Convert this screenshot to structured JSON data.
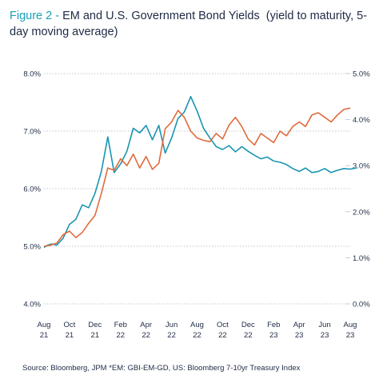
{
  "header": {
    "figure_label": "Figure 2 -",
    "title_text": "EM and U.S. Government Bond Yields",
    "subtitle_text": "(yield to maturity, 5-day moving average)"
  },
  "footer": {
    "source": "Source: Bloomberg, JPM *EM: GBI-EM-GD, US: Bloomberg 7-10yr Treasury Index"
  },
  "colors": {
    "em": "#1a95b0",
    "us": "#e06a3c",
    "grid": "#bfc8d0"
  },
  "chart_data": {
    "type": "line",
    "title": "EM and U.S. Government Bond Yields",
    "subtitle": "(yield to maturity, 5-day moving average)",
    "x_ticks": [
      {
        "month": "Aug",
        "year": "21"
      },
      {
        "month": "Oct",
        "year": "21"
      },
      {
        "month": "Dec",
        "year": "21"
      },
      {
        "month": "Feb",
        "year": "22"
      },
      {
        "month": "Apr",
        "year": "22"
      },
      {
        "month": "Jun",
        "year": "22"
      },
      {
        "month": "Aug",
        "year": "22"
      },
      {
        "month": "Oct",
        "year": "22"
      },
      {
        "month": "Dec",
        "year": "22"
      },
      {
        "month": "Feb",
        "year": "23"
      },
      {
        "month": "Apr",
        "year": "23"
      },
      {
        "month": "Jun",
        "year": "23"
      },
      {
        "month": "Aug",
        "year": "23"
      }
    ],
    "left_axis": {
      "ticks": [
        "4.0%",
        "5.0%",
        "6.0%",
        "7.0%",
        "8.0%"
      ],
      "ylim": [
        4.0,
        8.0
      ]
    },
    "right_axis": {
      "ticks": [
        "0.0%",
        "1.0%",
        "2.0%",
        "3.0%",
        "4.0%",
        "5.0%"
      ],
      "ylim": [
        0.0,
        5.0
      ]
    },
    "grid": "horizontal dotted",
    "series": [
      {
        "axis": "left",
        "x": [
          0,
          0.3,
          0.6,
          1,
          1.5,
          2,
          2.5,
          3,
          3.5,
          4,
          4.5,
          5,
          5.5,
          6,
          6.5,
          7,
          7.5,
          8,
          8.5,
          9,
          9.5,
          10,
          10.5,
          11,
          11.5,
          12,
          12.5,
          13,
          13.5,
          14,
          14.5,
          15,
          15.5,
          16,
          16.5,
          17,
          17.5,
          18,
          18.5,
          19,
          19.5,
          20,
          20.5,
          21,
          21.5,
          22,
          22.5,
          23,
          23.5,
          24,
          24.5
        ],
        "values": [
          4.98,
          5.02,
          5.04,
          5.02,
          5.14,
          5.38,
          5.47,
          5.72,
          5.67,
          5.92,
          6.3,
          6.9,
          6.28,
          6.43,
          6.65,
          7.05,
          6.97,
          7.1,
          6.85,
          7.1,
          6.62,
          6.88,
          7.22,
          7.33,
          7.6,
          7.35,
          7.05,
          6.88,
          6.73,
          6.68,
          6.75,
          6.64,
          6.73,
          6.65,
          6.58,
          6.52,
          6.55,
          6.48,
          6.46,
          6.42,
          6.35,
          6.3,
          6.36,
          6.28,
          6.3,
          6.35,
          6.28,
          6.32,
          6.35,
          6.34,
          6.36
        ]
      },
      {
        "axis": "right",
        "x": [
          0,
          0.5,
          1,
          1.5,
          2,
          2.5,
          3,
          3.5,
          4,
          4.5,
          5,
          5.5,
          6,
          6.5,
          7,
          7.5,
          8,
          8.5,
          9,
          9.5,
          10,
          10.5,
          11,
          11.5,
          12,
          12.5,
          13,
          13.5,
          14,
          14.5,
          15,
          15.5,
          16,
          16.5,
          17,
          17.5,
          18,
          18.5,
          19,
          19.5,
          20,
          20.5,
          21,
          21.5,
          22,
          22.5,
          23,
          23.5,
          24
        ],
        "values": [
          1.25,
          1.27,
          1.32,
          1.5,
          1.58,
          1.44,
          1.55,
          1.75,
          1.92,
          2.4,
          2.95,
          2.9,
          3.15,
          3.0,
          3.25,
          2.95,
          3.2,
          2.92,
          3.05,
          3.8,
          3.95,
          4.2,
          4.05,
          3.75,
          3.6,
          3.55,
          3.52,
          3.7,
          3.58,
          3.88,
          4.05,
          3.85,
          3.58,
          3.45,
          3.7,
          3.6,
          3.5,
          3.75,
          3.65,
          3.85,
          3.95,
          3.85,
          4.1,
          4.15,
          4.05,
          3.95,
          4.1,
          4.22,
          4.25
        ]
      }
    ]
  }
}
